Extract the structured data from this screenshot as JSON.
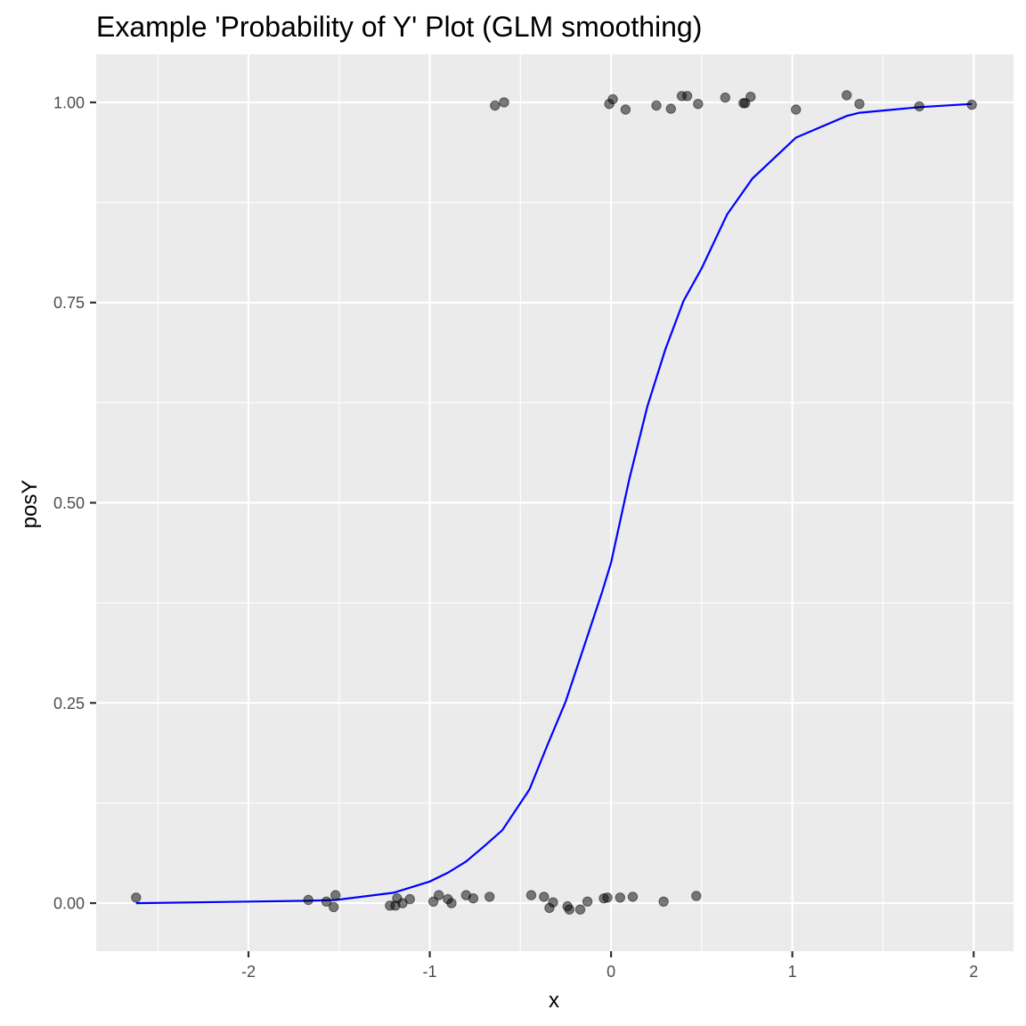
{
  "chart_data": {
    "type": "scatter",
    "title": "Example 'Probability of Y' Plot (GLM smoothing)",
    "xlabel": "x",
    "ylabel": "posY",
    "xlim": [
      -2.84,
      2.22
    ],
    "ylim": [
      -0.06,
      1.06
    ],
    "x_ticks": [
      -2,
      -1,
      0,
      1,
      2
    ],
    "x_tick_labels": [
      "-2",
      "-1",
      "0",
      "1",
      "2"
    ],
    "y_ticks": [
      0,
      0.25,
      0.5,
      0.75,
      1
    ],
    "y_tick_labels": [
      "0.00",
      "0.25",
      "0.50",
      "0.75",
      "1.00"
    ],
    "grid": true,
    "panel_color": "#ebebeb",
    "point_color": "#000000",
    "point_opacity": 0.5,
    "line_color": "#0000ff",
    "points": [
      {
        "x": -2.62,
        "y": 0.007
      },
      {
        "x": -1.67,
        "y": 0.004
      },
      {
        "x": -1.57,
        "y": 0.002
      },
      {
        "x": -1.53,
        "y": -0.005
      },
      {
        "x": -1.52,
        "y": 0.01
      },
      {
        "x": -1.22,
        "y": -0.003
      },
      {
        "x": -1.19,
        "y": -0.003
      },
      {
        "x": -1.18,
        "y": 0.006
      },
      {
        "x": -1.15,
        "y": 0.0
      },
      {
        "x": -1.11,
        "y": 0.005
      },
      {
        "x": -0.98,
        "y": 0.002
      },
      {
        "x": -0.95,
        "y": 0.01
      },
      {
        "x": -0.9,
        "y": 0.005
      },
      {
        "x": -0.88,
        "y": 0.0
      },
      {
        "x": -0.8,
        "y": 0.01
      },
      {
        "x": -0.76,
        "y": 0.006
      },
      {
        "x": -0.67,
        "y": 0.008
      },
      {
        "x": -0.44,
        "y": 0.01
      },
      {
        "x": -0.37,
        "y": 0.008
      },
      {
        "x": -0.34,
        "y": -0.006
      },
      {
        "x": -0.32,
        "y": 0.001
      },
      {
        "x": -0.24,
        "y": -0.004
      },
      {
        "x": -0.23,
        "y": -0.008
      },
      {
        "x": -0.17,
        "y": -0.008
      },
      {
        "x": -0.13,
        "y": 0.002
      },
      {
        "x": -0.04,
        "y": 0.006
      },
      {
        "x": -0.02,
        "y": 0.007
      },
      {
        "x": 0.05,
        "y": 0.007
      },
      {
        "x": 0.12,
        "y": 0.008
      },
      {
        "x": 0.29,
        "y": 0.002
      },
      {
        "x": 0.47,
        "y": 0.009
      },
      {
        "x": -0.64,
        "y": 0.996
      },
      {
        "x": -0.59,
        "y": 1.0
      },
      {
        "x": -0.01,
        "y": 0.998
      },
      {
        "x": 0.01,
        "y": 1.004
      },
      {
        "x": 0.08,
        "y": 0.991
      },
      {
        "x": 0.25,
        "y": 0.996
      },
      {
        "x": 0.33,
        "y": 0.992
      },
      {
        "x": 0.39,
        "y": 1.008
      },
      {
        "x": 0.42,
        "y": 1.008
      },
      {
        "x": 0.48,
        "y": 0.998
      },
      {
        "x": 0.63,
        "y": 1.006
      },
      {
        "x": 0.73,
        "y": 0.999
      },
      {
        "x": 0.74,
        "y": 0.999
      },
      {
        "x": 0.77,
        "y": 1.007
      },
      {
        "x": 1.02,
        "y": 0.991
      },
      {
        "x": 1.3,
        "y": 1.009
      },
      {
        "x": 1.37,
        "y": 0.998
      },
      {
        "x": 1.7,
        "y": 0.995
      },
      {
        "x": 1.99,
        "y": 0.997
      }
    ],
    "fit_curve": {
      "method": "glm",
      "x": [
        -2.62,
        -1.67,
        -1.52,
        -1.2,
        -1.0,
        -0.9,
        -0.8,
        -0.7,
        -0.6,
        -0.45,
        -0.35,
        -0.25,
        -0.15,
        -0.05,
        0.0,
        0.1,
        0.2,
        0.3,
        0.4,
        0.5,
        0.64,
        0.78,
        1.02,
        1.3,
        1.37,
        1.7,
        1.99
      ],
      "y": [
        0.0,
        0.003,
        0.004,
        0.013,
        0.027,
        0.038,
        0.052,
        0.071,
        0.091,
        0.142,
        0.198,
        0.252,
        0.32,
        0.388,
        0.425,
        0.529,
        0.62,
        0.692,
        0.752,
        0.793,
        0.86,
        0.905,
        0.956,
        0.983,
        0.987,
        0.994,
        0.998
      ]
    }
  }
}
